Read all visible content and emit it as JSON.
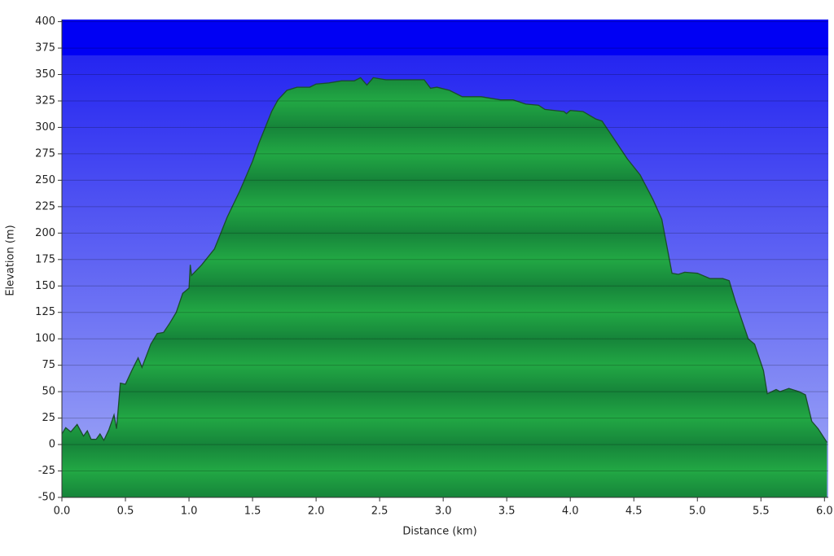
{
  "chart_data": {
    "type": "area",
    "x_label": "Distance  (km)",
    "y_label": "Elevation (m)",
    "x": [
      0.0,
      0.03,
      0.07,
      0.12,
      0.17,
      0.2,
      0.23,
      0.27,
      0.3,
      0.33,
      0.37,
      0.41,
      0.43,
      0.46,
      0.5,
      0.55,
      0.6,
      0.63,
      0.7,
      0.75,
      0.8,
      0.85,
      0.9,
      0.95,
      1.0,
      1.01,
      1.02,
      1.1,
      1.2,
      1.3,
      1.4,
      1.5,
      1.55,
      1.6,
      1.65,
      1.7,
      1.77,
      1.85,
      1.95,
      2.0,
      2.1,
      2.2,
      2.3,
      2.35,
      2.4,
      2.45,
      2.55,
      2.7,
      2.85,
      2.9,
      2.95,
      3.05,
      3.15,
      3.3,
      3.45,
      3.55,
      3.65,
      3.75,
      3.8,
      3.95,
      3.97,
      4.0,
      4.1,
      4.2,
      4.25,
      4.35,
      4.45,
      4.55,
      4.65,
      4.72,
      4.8,
      4.85,
      4.9,
      5.0,
      5.1,
      5.2,
      5.25,
      5.3,
      5.4,
      5.45,
      5.52,
      5.55,
      5.62,
      5.65,
      5.72,
      5.8,
      5.85,
      5.9,
      5.95,
      6.02
    ],
    "series": [
      {
        "name": "Elevation",
        "color": "#22a844",
        "line_color": "#1a4d2a",
        "values": [
          10,
          16,
          12,
          19,
          8,
          13,
          5,
          5,
          10,
          4,
          14,
          28,
          15,
          58,
          57,
          70,
          82,
          73,
          95,
          105,
          106,
          115,
          125,
          143,
          148,
          170,
          160,
          170,
          185,
          215,
          240,
          268,
          285,
          300,
          315,
          326,
          335,
          338,
          338,
          341,
          342,
          344,
          344,
          347,
          340,
          347,
          345,
          345,
          345,
          337,
          338,
          335,
          329,
          329,
          326,
          326,
          322,
          321,
          317,
          315,
          313,
          316,
          315,
          308,
          306,
          288,
          270,
          255,
          232,
          213,
          162,
          161,
          163,
          162,
          157,
          157,
          155,
          135,
          100,
          95,
          70,
          48,
          52,
          50,
          53,
          50,
          47,
          22,
          15,
          2
        ]
      }
    ],
    "xlim": [
      0,
      6.03
    ],
    "xticks": [
      {
        "value": 0,
        "label": "0.0"
      },
      {
        "value": 0.5,
        "label": "0.5"
      },
      {
        "value": 1,
        "label": "1.0"
      },
      {
        "value": 1.5,
        "label": "1.5"
      },
      {
        "value": 2,
        "label": "2.0"
      },
      {
        "value": 2.5,
        "label": "2.5"
      },
      {
        "value": 3,
        "label": "3.0"
      },
      {
        "value": 3.5,
        "label": "3.5"
      },
      {
        "value": 4,
        "label": "4.0"
      },
      {
        "value": 4.5,
        "label": "4.5"
      },
      {
        "value": 5,
        "label": "5.0"
      },
      {
        "value": 5.5,
        "label": "5.5"
      },
      {
        "value": 6,
        "label": "6.0"
      }
    ],
    "ylim": [
      -50,
      402
    ],
    "yticks": [
      -50,
      -25,
      0,
      25,
      50,
      75,
      100,
      125,
      150,
      175,
      200,
      225,
      250,
      275,
      300,
      325,
      350,
      375,
      400
    ],
    "grid": true
  }
}
